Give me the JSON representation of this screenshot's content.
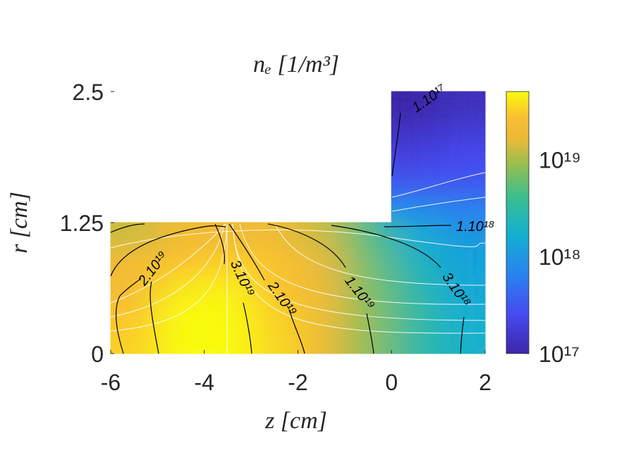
{
  "chart_data": {
    "type": "heatmap",
    "title": "nₑ [1/m³]",
    "xlabel": "z [cm]",
    "ylabel": "r [cm]",
    "x": [
      -5.5,
      -4.5,
      -3.5,
      -2.5,
      -1.5,
      -0.5,
      0.5,
      1.5
    ],
    "y": [
      0.125,
      0.375,
      0.625,
      0.875,
      1.125,
      1.375,
      1.625,
      1.875,
      2.125,
      2.375
    ],
    "values": [
      [
        3.2e+19,
        5e+19,
        5e+19,
        3.5e+19,
        2e+19,
        8e+18,
        3.2e+18,
        1.8e+18
      ],
      [
        2.8e+19,
        5e+19,
        5e+19,
        3.2e+19,
        2e+19,
        8e+18,
        3.2e+18,
        1.6e+18
      ],
      [
        2.2e+19,
        4e+19,
        4.5e+19,
        2.8e+19,
        1.8e+19,
        7e+18,
        2.8e+18,
        1.4e+18
      ],
      [
        2e+19,
        2.8e+19,
        3.2e+19,
        2.8e+19,
        1.6e+19,
        6.3e+18,
        2.2e+18,
        1.3e+18
      ],
      [
        1.3e+19,
        2e+19,
        2e+19,
        2e+19,
        1.3e+19,
        5e+18,
        1.6e+18,
        1e+18
      ],
      [
        null,
        null,
        null,
        null,
        null,
        null,
        8e+17,
        6.3e+17
      ],
      [
        null,
        null,
        null,
        null,
        null,
        null,
        3.2e+17,
        3.2e+17
      ],
      [
        null,
        null,
        null,
        null,
        null,
        null,
        2e+17,
        2.5e+17
      ],
      [
        null,
        null,
        null,
        null,
        null,
        null,
        1.4e+17,
        1.8e+17
      ],
      [
        null,
        null,
        null,
        null,
        null,
        null,
        1e+17,
        1.3e+17
      ]
    ],
    "xlim": [
      -6,
      2
    ],
    "xticks": [
      -6,
      -4,
      -2,
      0,
      2
    ],
    "ylim": [
      0,
      2.5
    ],
    "yticks": [
      0,
      1.25,
      2.5
    ],
    "colorbar": {
      "log": true,
      "clim": [
        1e+17,
        5e+19
      ],
      "ticks": [
        {
          "value": 1e+17,
          "label": "10¹⁷"
        },
        {
          "value": 1e+18,
          "label": "10¹⁸"
        },
        {
          "value": 1e+19,
          "label": "10¹⁹"
        }
      ]
    },
    "annotations": [
      "1.10¹⁷",
      "1.10¹⁸",
      "2.10¹⁹",
      "3.10¹⁹",
      "2.10¹⁹",
      "1.10¹⁹",
      "3.10¹⁸"
    ]
  }
}
